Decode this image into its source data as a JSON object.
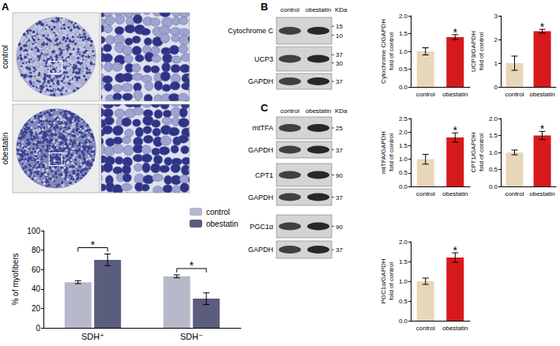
{
  "panel_labels": [
    "A",
    "B",
    "C"
  ],
  "micrographs": {
    "rows": [
      "control",
      "obestatin"
    ]
  },
  "blots": [
    {
      "columns": [
        "control",
        "obestatin"
      ],
      "unit": "KDa",
      "rows": [
        {
          "label": "Cytochrome C",
          "markers": [
            15,
            10
          ]
        },
        {
          "label": "UCP3",
          "markers": [
            37,
            30
          ]
        },
        {
          "label": "GAPDH",
          "markers": [
            37
          ]
        }
      ]
    },
    {
      "columns": [
        "control",
        "obestatin"
      ],
      "unit": "KDa",
      "rows": [
        {
          "label": "mtTFA",
          "markers": [
            25
          ]
        },
        {
          "label": "GAPDH",
          "markers": [
            37
          ]
        },
        {
          "label": "CPT1",
          "markers": [
            90
          ]
        },
        {
          "label": "GAPDH",
          "markers": [
            37
          ]
        },
        {
          "label": "PGC1α",
          "markers": [
            90
          ]
        },
        {
          "label": "GAPDH",
          "markers": [
            37
          ]
        }
      ]
    }
  ],
  "chart_data": [
    {
      "type": "bar",
      "ylabel": [
        "% of myofibers"
      ],
      "categories": [
        "SDH⁺",
        "SDH⁻"
      ],
      "series": [
        {
          "name": "control",
          "color": "#b7b9cb",
          "values": [
            47,
            53
          ],
          "errors": [
            1.5,
            1.5
          ]
        },
        {
          "name": "obestatin",
          "color": "#5b5d7c",
          "values": [
            70,
            30
          ],
          "errors": [
            6,
            6
          ]
        }
      ],
      "annotations": [
        {
          "category": "SDH⁺",
          "text": "*"
        },
        {
          "category": "SDH⁻",
          "text": "*"
        }
      ],
      "ylim": [
        0,
        100
      ],
      "yticks": [
        0,
        20,
        40,
        60,
        80,
        100
      ],
      "grid": false,
      "legend": "top-right"
    },
    {
      "type": "bar",
      "ylabel": [
        "Cytochrome C/GAPDH",
        "fold of control"
      ],
      "categories": [
        "control",
        "obestatin"
      ],
      "values": [
        1.0,
        1.4
      ],
      "errors": [
        0.1,
        0.07
      ],
      "colors": [
        "#e8d6b8",
        "#d7191c"
      ],
      "annotations": [
        {
          "category": "obestatin",
          "text": "*"
        }
      ],
      "ylim": [
        0,
        2
      ],
      "yticks": [
        {
          "value": 0,
          "label": "0.0"
        },
        {
          "value": 0.5,
          "label": "0.5"
        },
        {
          "value": 1,
          "label": "1.0"
        },
        {
          "value": 1.5,
          "label": "1.5"
        },
        {
          "value": 2,
          "label": "2.0"
        }
      ],
      "grid": false
    },
    {
      "type": "bar",
      "ylabel": [
        "UCP3/GAPDH",
        "fold of control"
      ],
      "categories": [
        "control",
        "obestatin"
      ],
      "values": [
        1.0,
        2.35
      ],
      "errors": [
        0.3,
        0.08
      ],
      "colors": [
        "#e8d6b8",
        "#d7191c"
      ],
      "annotations": [
        {
          "category": "obestatin",
          "text": "*"
        }
      ],
      "ylim": [
        0,
        3
      ],
      "yticks": [
        0,
        1,
        2,
        3
      ],
      "grid": false
    },
    {
      "type": "bar",
      "ylabel": [
        "mtTFA/GAPDH",
        "fold of control"
      ],
      "categories": [
        "control",
        "obestatin"
      ],
      "values": [
        1.0,
        1.8
      ],
      "errors": [
        0.18,
        0.17
      ],
      "colors": [
        "#e8d6b8",
        "#d7191c"
      ],
      "annotations": [
        {
          "category": "obestatin",
          "text": "*"
        }
      ],
      "ylim": [
        0,
        2.5
      ],
      "yticks": [
        {
          "value": 0,
          "label": "0.0"
        },
        {
          "value": 0.5,
          "label": "0.5"
        },
        {
          "value": 1,
          "label": "1.0"
        },
        {
          "value": 1.5,
          "label": "1.5"
        },
        {
          "value": 2,
          "label": "2.0"
        },
        {
          "value": 2.5,
          "label": "2.5"
        }
      ],
      "grid": false
    },
    {
      "type": "bar",
      "ylabel": [
        "CPT1/GAPDH",
        "fold of control"
      ],
      "categories": [
        "control",
        "obestatin"
      ],
      "values": [
        1.0,
        1.5
      ],
      "errors": [
        0.07,
        0.12
      ],
      "colors": [
        "#e8d6b8",
        "#d7191c"
      ],
      "annotations": [
        {
          "category": "obestatin",
          "text": "*"
        }
      ],
      "ylim": [
        0,
        2
      ],
      "yticks": [
        {
          "value": 0,
          "label": "0.0"
        },
        {
          "value": 0.5,
          "label": "0.5"
        },
        {
          "value": 1,
          "label": "1.0"
        },
        {
          "value": 1.5,
          "label": "1.5"
        },
        {
          "value": 2,
          "label": "2.0"
        }
      ],
      "grid": false
    },
    {
      "type": "bar",
      "ylabel": [
        "PGC1α/GAPDH",
        "fold of control"
      ],
      "categories": [
        "control",
        "obestatin"
      ],
      "values": [
        1.0,
        1.6
      ],
      "errors": [
        0.08,
        0.12
      ],
      "colors": [
        "#e8d6b8",
        "#d7191c"
      ],
      "annotations": [
        {
          "category": "obestatin",
          "text": "*"
        }
      ],
      "ylim": [
        0,
        2
      ],
      "yticks": [
        {
          "value": 0,
          "label": "0.0"
        },
        {
          "value": 0.5,
          "label": "0.5"
        },
        {
          "value": 1,
          "label": "1.0"
        },
        {
          "value": 1.5,
          "label": "1.5"
        },
        {
          "value": 2,
          "label": "2.0"
        }
      ],
      "grid": false
    }
  ]
}
